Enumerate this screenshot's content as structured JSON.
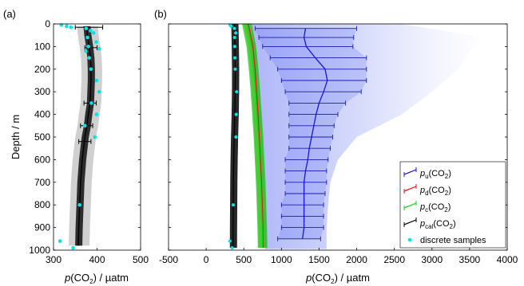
{
  "chart_data": [
    {
      "type": "line",
      "panel_label": "(a)",
      "xlabel": "p(CO2) / µatm",
      "ylabel": "Depth / m",
      "xlim": [
        300,
        500
      ],
      "ylim": [
        0,
        1000
      ],
      "y_inverted": true,
      "x_ticks": [
        "300",
        "400",
        "500"
      ],
      "y_ticks": [
        "0",
        "100",
        "200",
        "300",
        "400",
        "500",
        "600",
        "700",
        "800",
        "900",
        "1000"
      ],
      "grid": false,
      "colors": {
        "profile": "#000000",
        "ensemble": "#888888",
        "samples": "#00e5e5"
      },
      "series": [
        {
          "name": "pcal(CO2)",
          "depth": [
            10,
            50,
            100,
            150,
            200,
            250,
            300,
            350,
            400,
            450,
            500,
            600,
            700,
            800,
            900,
            980
          ],
          "value": [
            376,
            378,
            382,
            385,
            386,
            386,
            385,
            384,
            380,
            377,
            372,
            366,
            362,
            360,
            358,
            357
          ],
          "err_depth": [
            15,
            105,
            350,
            450,
            520
          ],
          "err_lo": [
            350,
            372,
            370,
            362,
            358
          ],
          "err_hi": [
            413,
            400,
            398,
            390,
            386
          ]
        },
        {
          "name": "discrete samples",
          "depth": [
            5,
            10,
            15,
            20,
            30,
            40,
            60,
            80,
            100,
            110,
            120,
            150,
            200,
            250,
            300,
            350,
            400,
            450,
            500,
            800,
            960,
            990
          ],
          "value": [
            318,
            330,
            340,
            375,
            385,
            392,
            378,
            398,
            380,
            405,
            374,
            382,
            386,
            399,
            405,
            387,
            399,
            372,
            395,
            360,
            315,
            345
          ]
        }
      ]
    },
    {
      "type": "line",
      "panel_label": "(b)",
      "xlabel": "p(CO2) / µatm",
      "xlim": [
        -500,
        4000
      ],
      "ylim": [
        0,
        1000
      ],
      "y_inverted": true,
      "x_ticks": [
        "-500",
        "0",
        "500",
        "1000",
        "1500",
        "2000",
        "2500",
        "3000",
        "3500",
        "4000"
      ],
      "grid": false,
      "legend": "bottom-right",
      "legend_entries": [
        {
          "sym": "u",
          "text": "pu(CO2)",
          "color": "#1414e6"
        },
        {
          "sym": "d",
          "text": "pd(CO2)",
          "color": "#e61414"
        },
        {
          "sym": "c",
          "text": "pc(CO2)",
          "color": "#14d214"
        },
        {
          "sym": "cal",
          "text": "pcal(CO2)",
          "color": "#000000"
        },
        {
          "sym": "",
          "text": "discrete samples",
          "color": "#00e5e5"
        }
      ],
      "series": [
        {
          "name": "pu(CO2)",
          "color": "#1414e6",
          "depth": [
            20,
            60,
            100,
            150,
            200,
            250,
            300,
            350,
            400,
            450,
            500,
            550,
            600,
            650,
            700,
            750,
            800,
            850,
            900,
            950
          ],
          "value": [
            1320,
            1300,
            1330,
            1450,
            1580,
            1610,
            1560,
            1500,
            1460,
            1430,
            1400,
            1370,
            1350,
            1320,
            1300,
            1300,
            1300,
            1300,
            1300,
            1280
          ],
          "err_lo": [
            650,
            700,
            750,
            850,
            950,
            1000,
            1050,
            1100,
            1100,
            1100,
            1100,
            1100,
            1050,
            1050,
            1050,
            1050,
            1000,
            1000,
            1000,
            950
          ],
          "err_hi": [
            2000,
            1960,
            1950,
            2130,
            2130,
            2130,
            2060,
            1850,
            1750,
            1700,
            1680,
            1650,
            1620,
            1600,
            1600,
            1580,
            1560,
            1560,
            1560,
            1520
          ]
        },
        {
          "name": "pd(CO2)",
          "color": "#e61414",
          "depth": [
            0,
            100,
            200,
            300,
            400,
            500,
            600,
            700,
            800,
            900,
            990
          ],
          "value": [
            560,
            620,
            650,
            670,
            690,
            705,
            720,
            735,
            745,
            755,
            760
          ]
        },
        {
          "name": "pc(CO2)",
          "color": "#14d214",
          "depth": [
            0,
            100,
            200,
            300,
            400,
            500,
            600,
            700,
            800,
            900,
            990
          ],
          "value": [
            540,
            600,
            630,
            655,
            675,
            695,
            710,
            725,
            735,
            745,
            750
          ]
        },
        {
          "name": "pcal(CO2)",
          "color": "#000000",
          "depth": [
            0,
            100,
            200,
            300,
            400,
            500,
            600,
            700,
            800,
            900,
            990
          ],
          "value": [
            376,
            382,
            386,
            385,
            380,
            372,
            366,
            362,
            360,
            358,
            357
          ]
        },
        {
          "name": "discrete samples",
          "color": "#00e5e5",
          "depth": [
            5,
            10,
            20,
            40,
            60,
            100,
            150,
            200,
            300,
            400,
            500,
            800,
            960,
            990
          ],
          "value": [
            318,
            330,
            375,
            392,
            378,
            380,
            382,
            386,
            405,
            399,
            395,
            360,
            315,
            345
          ]
        }
      ]
    }
  ]
}
